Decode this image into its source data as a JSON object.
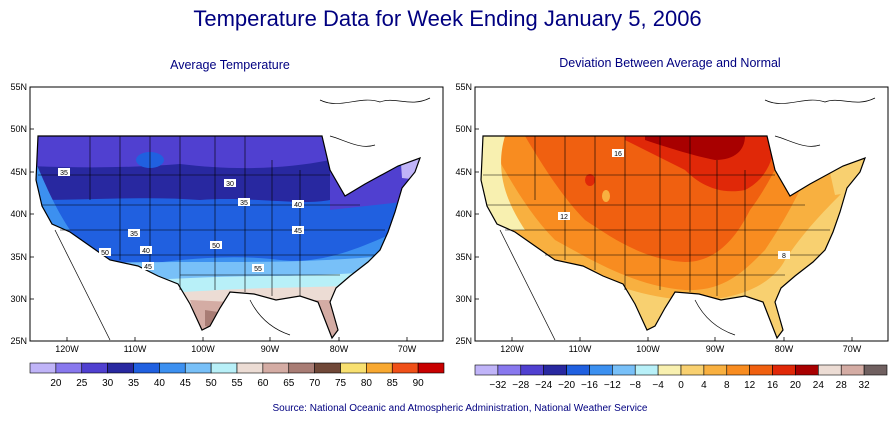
{
  "title": "Temperature Data for Week Ending January 5, 2006",
  "source": "Source:  National Oceanic and Atmospheric Administration, National Weather Service",
  "maps": [
    {
      "subtitle": "Average Temperature",
      "lat_labels": [
        "55N",
        "50N",
        "45N",
        "40N",
        "35N",
        "30N",
        "25N"
      ],
      "lon_labels": [
        "120W",
        "110W",
        "100W",
        "90W",
        "80W",
        "70W"
      ],
      "contour_labels": [
        "35",
        "30",
        "35",
        "40",
        "45",
        "50",
        "35",
        "40",
        "45",
        "50",
        "55"
      ],
      "legend": {
        "labels": [
          "20",
          "25",
          "30",
          "35",
          "40",
          "45",
          "50",
          "55",
          "60",
          "65",
          "70",
          "75",
          "80",
          "85",
          "90"
        ],
        "colors": [
          "#c0b4f8",
          "#8878ee",
          "#5040d0",
          "#2828a0",
          "#2060e0",
          "#3c90f0",
          "#78c0f8",
          "#b8f0f8",
          "#ecdcd4",
          "#d4aca4",
          "#a87c74",
          "#704838",
          "#f8e070",
          "#f8a830",
          "#f05018",
          "#c80000"
        ]
      }
    },
    {
      "subtitle": "Deviation Between Average and Normal",
      "lat_labels": [
        "55N",
        "50N",
        "45N",
        "40N",
        "35N",
        "30N",
        "25N"
      ],
      "lon_labels": [
        "120W",
        "110W",
        "100W",
        "90W",
        "80W",
        "70W"
      ],
      "contour_labels": [
        "16",
        "12",
        "8"
      ],
      "legend": {
        "labels": [
          "−32",
          "−28",
          "−24",
          "−20",
          "−16",
          "−12",
          "−8",
          "−4",
          "0",
          "4",
          "8",
          "12",
          "16",
          "20",
          "24",
          "28",
          "32"
        ],
        "colors": [
          "#c0b4f8",
          "#8878ee",
          "#5040d0",
          "#2828a0",
          "#2060e0",
          "#3c90f0",
          "#78c0f8",
          "#b8f0f8",
          "#f8f0b0",
          "#f8d070",
          "#f8b040",
          "#f88c20",
          "#f06010",
          "#e02808",
          "#a80000",
          "#ecdcd4",
          "#d4aca4",
          "#706060"
        ]
      }
    }
  ]
}
